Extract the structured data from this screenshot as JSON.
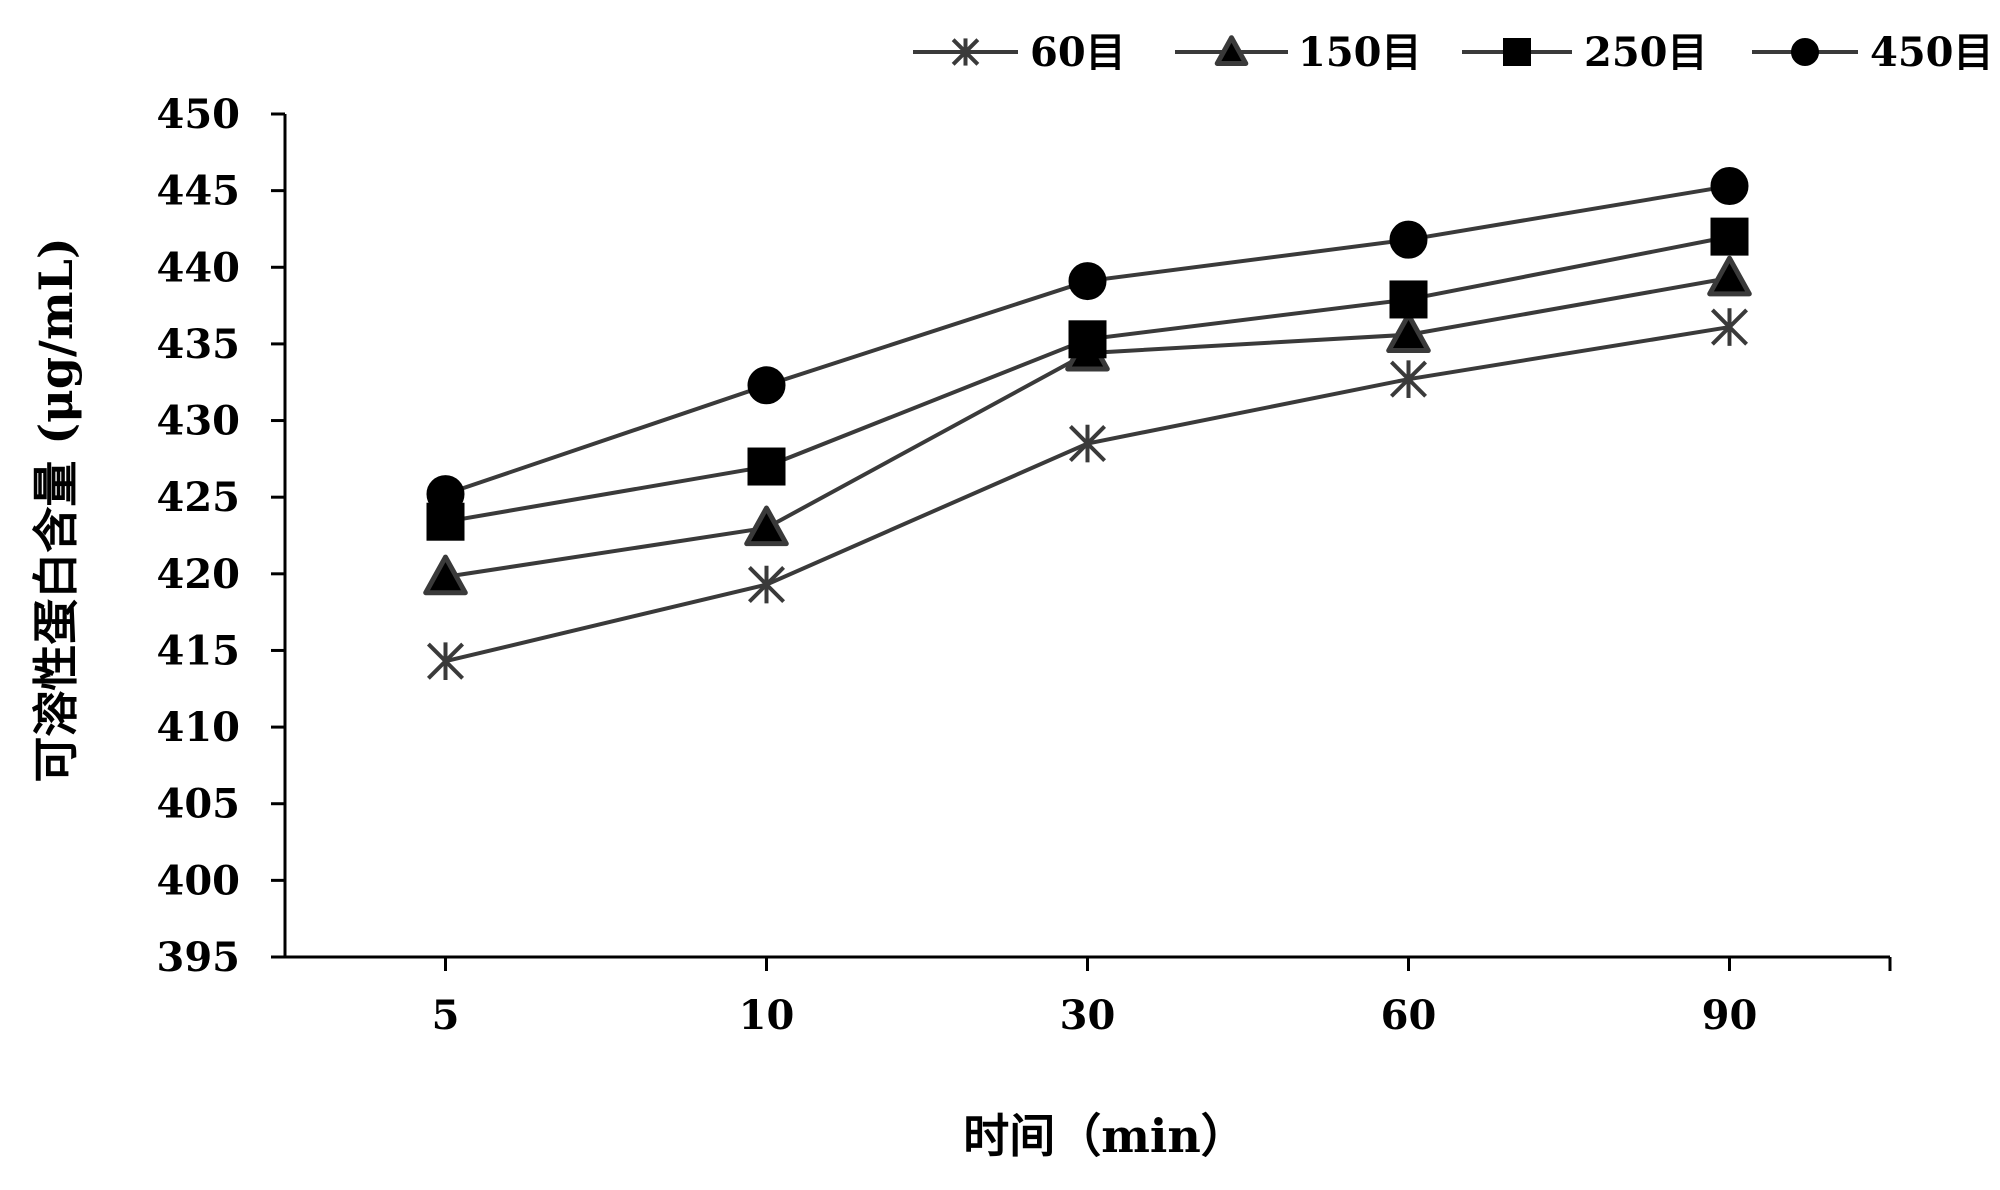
{
  "chart_data": {
    "type": "line",
    "title": "",
    "xlabel": "时间（min）",
    "ylabel": "可溶性蛋白含量 (μg/mL)",
    "categories": [
      "5",
      "10",
      "30",
      "60",
      "90"
    ],
    "ylim": [
      395,
      450
    ],
    "yticks": [
      "395",
      "400",
      "405",
      "410",
      "415",
      "420",
      "425",
      "430",
      "435",
      "440",
      "445",
      "450"
    ],
    "grid": false,
    "legend_position": "top-right",
    "line_color": "#3a3a3a",
    "series": [
      {
        "name": "60目",
        "marker": "asterisk",
        "values": [
          414.3,
          419.3,
          428.5,
          432.7,
          436.1
        ]
      },
      {
        "name": "150目",
        "marker": "triangle",
        "values": [
          419.8,
          423.0,
          434.4,
          435.6,
          439.3
        ]
      },
      {
        "name": "250目",
        "marker": "square",
        "values": [
          423.4,
          427.0,
          435.3,
          437.9,
          442.0
        ]
      },
      {
        "name": "450目",
        "marker": "circle",
        "values": [
          425.2,
          432.3,
          439.1,
          441.8,
          445.3
        ]
      }
    ]
  }
}
